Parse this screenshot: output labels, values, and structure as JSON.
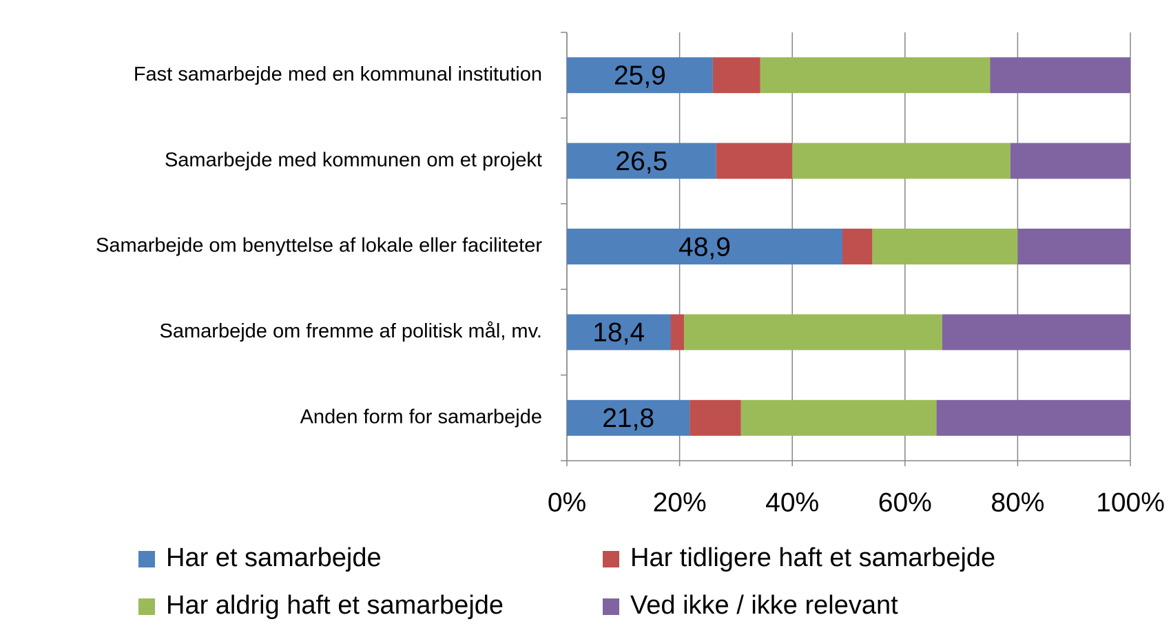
{
  "chart_data": {
    "type": "bar",
    "orientation": "horizontal",
    "stacked": true,
    "categories": [
      "Fast samarbejde med en kommunal institution",
      "Samarbejde med kommunen om et projekt",
      "Samarbejde om benyttelse af lokale eller faciliteter",
      "Samarbejde om fremme af politisk mål, mv.",
      "Anden form for samarbejde"
    ],
    "series": [
      {
        "name": "Har et samarbejde",
        "color": "#4f81bd",
        "values": [
          25.9,
          26.5,
          48.9,
          18.4,
          21.8
        ],
        "value_labels": [
          "25,9",
          "26,5",
          "48,9",
          "18,4",
          "21,8"
        ]
      },
      {
        "name": "Har tidligere haft et samarbejde",
        "color": "#c0504d",
        "values": [
          8.4,
          13.5,
          5.3,
          2.4,
          9.1
        ]
      },
      {
        "name": "Har aldrig haft et samarbejde",
        "color": "#9bbb59",
        "values": [
          40.8,
          38.7,
          25.8,
          45.8,
          34.7
        ]
      },
      {
        "name": "Ved ikke / ikke relevant",
        "color": "#8064a2",
        "values": [
          24.9,
          21.3,
          20.0,
          33.4,
          34.4
        ]
      }
    ],
    "xlim": [
      0,
      100
    ],
    "xticks": [
      {
        "value": 0,
        "label": "0%"
      },
      {
        "value": 20,
        "label": "20%"
      },
      {
        "value": 40,
        "label": "40%"
      },
      {
        "value": 60,
        "label": "60%"
      },
      {
        "value": 80,
        "label": "80%"
      },
      {
        "value": 100,
        "label": "100%"
      }
    ],
    "grid": true,
    "legend": "bottom"
  }
}
